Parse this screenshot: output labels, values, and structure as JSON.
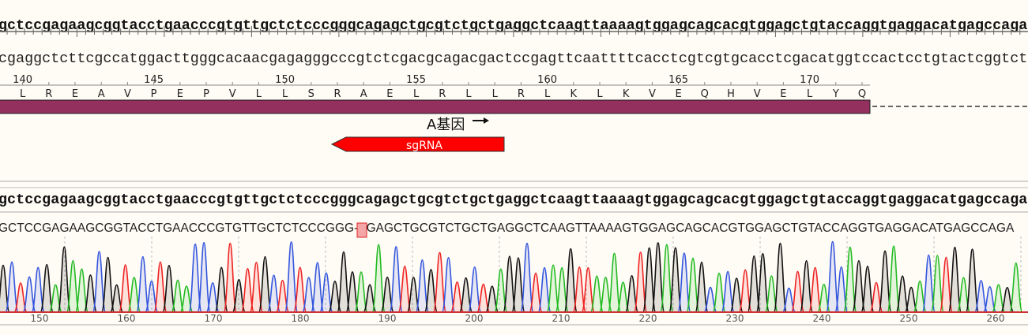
{
  "reference_strand": "gctccgagaagcggtacctgaacccgtgttgctctcccgggcagagctgcgtctgctgaggctcaagttaaaagtggagcagcacgtggagctgtaccaggtgaggacatgagccaga",
  "complement_strand": "cgaggctcttcgccatggacttgggcacaacgagagggcccgtctcgacgcagacgactccgagttcaattttcacctcgtcgtgcacctcgacatggtccactcctgtactcggtct",
  "translation": {
    "residue_numbers": [
      "140",
      "145",
      "150",
      "155",
      "160",
      "165",
      "170"
    ],
    "amino_acids": [
      "L",
      "R",
      "E",
      "A",
      "V",
      "P",
      "E",
      "P",
      "V",
      "L",
      "L",
      "S",
      "R",
      "A",
      "E",
      "L",
      "R",
      "L",
      "L",
      "R",
      "L",
      "K",
      "L",
      "K",
      "V",
      "E",
      "Q",
      "H",
      "V",
      "E",
      "L",
      "Y",
      "Q"
    ]
  },
  "feature": {
    "label": "A基因",
    "direction": "forward",
    "color": "#93305d"
  },
  "primer": {
    "label": "sgRNA",
    "direction": "reverse",
    "color": "#ff0000"
  },
  "alignment": {
    "reference": "gctccgagaagcggtacctgaacccgtgttgctctcccgggcagagctgcgtctgctgaggctcaagttaaaagtggagcagcacgtggagctgtaccaggtgaggacatgagccaga",
    "read": "GCTCCGAGAAGCGGTACCTGAACCCGTGTTGCTCTCCCGGG-AGAGCTGCGTCTGCTGAGGCTCAAGTTAAAAGTGGAGCAGCACGTGGAGCTGTACCAGGTGAGGACATGAGCCAGA",
    "gap_color": "#f4a6a6"
  },
  "chromatogram": {
    "x_ticks": [
      "150",
      "160",
      "170",
      "180",
      "190",
      "200",
      "210",
      "220",
      "230",
      "240",
      "250",
      "260"
    ],
    "base_colors": {
      "A": "#22bb22",
      "C": "#3355dd",
      "G": "#111111",
      "T": "#ee2222"
    }
  }
}
